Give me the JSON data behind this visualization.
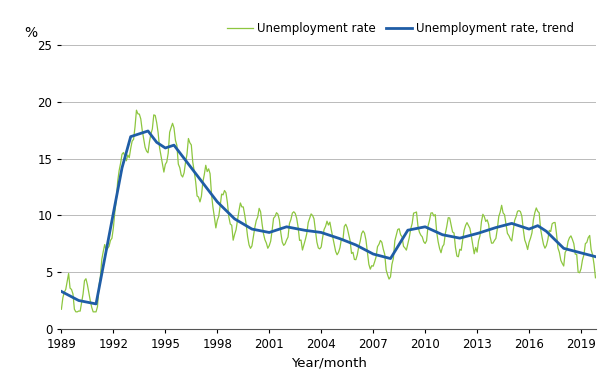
{
  "xlabel": "Year/month",
  "ylabel": "%",
  "ylim": [
    0,
    25
  ],
  "yticks": [
    0,
    5,
    10,
    15,
    20,
    25
  ],
  "xlim_start": 1989.0,
  "xlim_end": 2019.84,
  "xtick_years": [
    1989,
    1992,
    1995,
    1998,
    2001,
    2004,
    2007,
    2010,
    2013,
    2016,
    2019
  ],
  "line_color_unemployment": "#8dc63f",
  "line_color_trend": "#1f5da6",
  "legend_label_unemployment": "Unemployment rate",
  "legend_label_trend": "Unemployment rate, trend",
  "bg_color": "#ffffff",
  "grid_color": "#b0b0b0"
}
